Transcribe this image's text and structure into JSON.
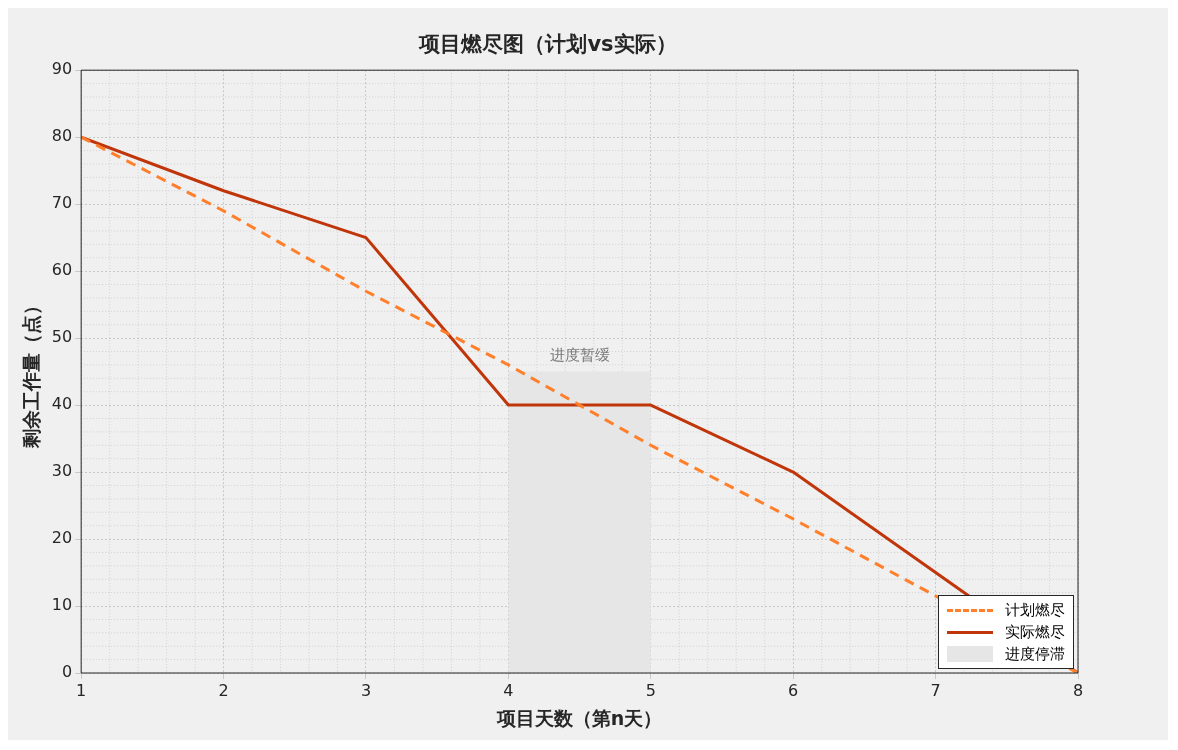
{
  "chart_data": {
    "type": "line",
    "title": "项目燃尽图（计划vs实际）",
    "xlabel": "项目天数（第n天）",
    "ylabel": "剩余工作量（点）",
    "x": [
      1,
      2,
      3,
      4,
      5,
      6,
      7,
      8
    ],
    "series": [
      {
        "name": "计划燃尽",
        "color": "#ff7f2a",
        "line_style": "dashed",
        "values": [
          80,
          69,
          57,
          46,
          34,
          23,
          null,
          0
        ]
      },
      {
        "name": "实际燃尽",
        "color": "#c0360a",
        "line_style": "solid",
        "values": [
          80,
          72,
          65,
          40,
          40,
          30,
          15,
          0
        ]
      },
      {
        "name": "进度停滞",
        "type": "area",
        "color": "#e6e6e6",
        "x": [
          4,
          5
        ],
        "values": [
          45,
          45
        ]
      }
    ],
    "annotations": [
      "进度暂缓"
    ],
    "xlim": [
      1,
      8
    ],
    "xticks": [
      1,
      2,
      3,
      4,
      5,
      6,
      7,
      8
    ],
    "ylim": [
      0,
      90
    ],
    "yticks": [
      0,
      10,
      20,
      30,
      40,
      50,
      60,
      70,
      80,
      90
    ],
    "grid": true,
    "legend": "bottom right",
    "marker": "none"
  }
}
